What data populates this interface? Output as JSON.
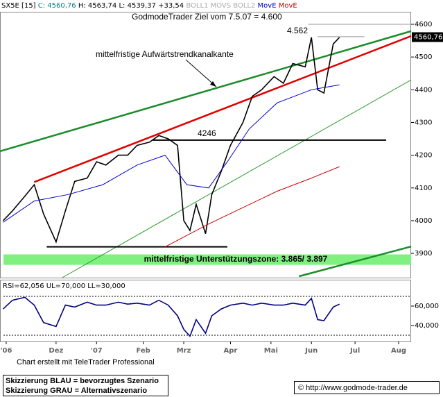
{
  "chart_data": [
    {
      "type": "line",
      "header_stats": [
        "C: 4560,76",
        "H: 4563,74",
        "L: 4539,37",
        "+33,54",
        "BOLL1",
        "MOVS",
        "BOLL2"
      ],
      "annotation": "mittelfristige Aufwärtstrendkanalkante",
      "xlim": [
        0,
        132
      ],
      "ylim": [
        3826,
        4636
      ],
      "yticks": [
        3900,
        4000,
        4100,
        4200,
        4300,
        4400,
        4500,
        4600
      ],
      "series": [
        {
          "name": "SX5E [15]",
          "color": "#000000",
          "x": [
            1,
            4,
            8,
            11,
            14,
            18,
            21,
            24,
            28,
            31,
            34,
            38,
            41,
            44,
            48,
            51,
            54,
            57,
            59,
            61,
            63,
            66,
            68,
            71,
            74,
            78,
            81,
            84,
            88,
            91,
            94,
            98,
            100,
            102,
            104,
            107,
            109
          ],
          "values": [
            4000,
            4030,
            4075,
            4110,
            4020,
            3935,
            4030,
            4120,
            4130,
            4180,
            4170,
            4200,
            4200,
            4230,
            4240,
            4260,
            4250,
            4230,
            4000,
            3970,
            4050,
            3960,
            4080,
            4150,
            4230,
            4300,
            4380,
            4400,
            4440,
            4420,
            4480,
            4470,
            4560,
            4400,
            4390,
            4540,
            4560
          ]
        },
        {
          "name": "MovE",
          "color": "#0000cc",
          "x": [
            1,
            11,
            22,
            33,
            44,
            53,
            60,
            67,
            73,
            80,
            89,
            100,
            109
          ],
          "values": [
            3995,
            4060,
            4080,
            4110,
            4170,
            4200,
            4110,
            4100,
            4180,
            4280,
            4360,
            4400,
            4415
          ]
        },
        {
          "name": "MovE",
          "color": "#cc0000",
          "x": [
            53,
            67,
            78,
            89,
            100,
            109
          ],
          "values": [
            3920,
            3990,
            4040,
            4090,
            4130,
            4165
          ]
        }
      ],
      "trendlines": [
        {
          "color": "#1a8c2a",
          "width": 2.5,
          "x": [
            0,
            132
          ],
          "values": [
            4212,
            4579
          ]
        },
        {
          "color": "#e00000",
          "width": 2.5,
          "x": [
            11,
            132
          ],
          "values": [
            4118,
            4564
          ]
        },
        {
          "color": "#2a9a2a",
          "width": 1,
          "x": [
            20,
            132
          ],
          "values": [
            3826,
            4430
          ]
        },
        {
          "color": "#1a8c2a",
          "width": 2.5,
          "x": [
            96,
            132
          ],
          "values": [
            3830,
            3921
          ]
        }
      ],
      "levels": [
        {
          "value": 4600,
          "x": [
            99,
            132
          ],
          "color": "#999999",
          "label": "GodmodeTrader Ziel vom 7.5.07 = 4.600"
        },
        {
          "value": 4562,
          "x": [
            102,
            117
          ],
          "color": "#999999",
          "label": "4.562"
        },
        {
          "value": 4246,
          "x": [
            49,
            124
          ],
          "color": "#000000",
          "label": "4246"
        },
        {
          "value": 3920,
          "x": [
            15,
            73
          ],
          "color": "#000000"
        }
      ],
      "zone": {
        "range": [
          3865,
          3897
        ],
        "color": "#80f080",
        "label": "mittelfristige Unterstützungszone: 3.865/ 3.897"
      },
      "last_price": {
        "value": 4560.76,
        "label": "4560,76"
      }
    },
    {
      "type": "line",
      "title": "RSI=62,056 UL=70,000 LL=30,000",
      "xlim": [
        0,
        132
      ],
      "ylim": [
        23.6,
        86.4
      ],
      "yticks": [
        {
          "value": 40,
          "label": "40,000"
        },
        {
          "value": 60,
          "label": "60,000"
        }
      ],
      "bands": [
        30,
        70
      ],
      "xticks": [
        {
          "value": 2,
          "label": "'06"
        },
        {
          "value": 18,
          "label": "Dez"
        },
        {
          "value": 31,
          "label": "'07"
        },
        {
          "value": 46,
          "label": "Feb"
        },
        {
          "value": 59,
          "label": "Mrz"
        },
        {
          "value": 74,
          "label": "Apr"
        },
        {
          "value": 87,
          "label": "Mai"
        },
        {
          "value": 100,
          "label": "Jun"
        },
        {
          "value": 114,
          "label": "Jul"
        },
        {
          "value": 128,
          "label": "Aug"
        }
      ],
      "series": [
        {
          "name": "RSI",
          "color": "#000080",
          "x": [
            1,
            4,
            8,
            11,
            14,
            18,
            21,
            24,
            28,
            31,
            34,
            38,
            41,
            44,
            48,
            51,
            54,
            57,
            59,
            61,
            63,
            66,
            68,
            71,
            74,
            78,
            81,
            84,
            88,
            91,
            94,
            98,
            100,
            102,
            104,
            107,
            109
          ],
          "values": [
            57,
            66,
            69,
            61,
            43,
            39,
            61,
            59,
            64,
            61,
            61,
            64,
            62,
            63,
            61,
            66,
            61,
            50,
            36,
            29,
            46,
            32,
            50,
            57,
            61,
            63,
            61,
            63,
            61,
            61,
            63,
            61,
            68,
            46,
            45,
            59,
            62
          ]
        }
      ]
    }
  ],
  "footer": {
    "credit": "Chart erstellt mit TeleTrader Professional",
    "legend": [
      "Skizzierung BLAU = bevorzugtes Szenario",
      "Skizzierung GRAU = Alternativszenario"
    ],
    "url": "© http://www.godmode-trader.de"
  }
}
